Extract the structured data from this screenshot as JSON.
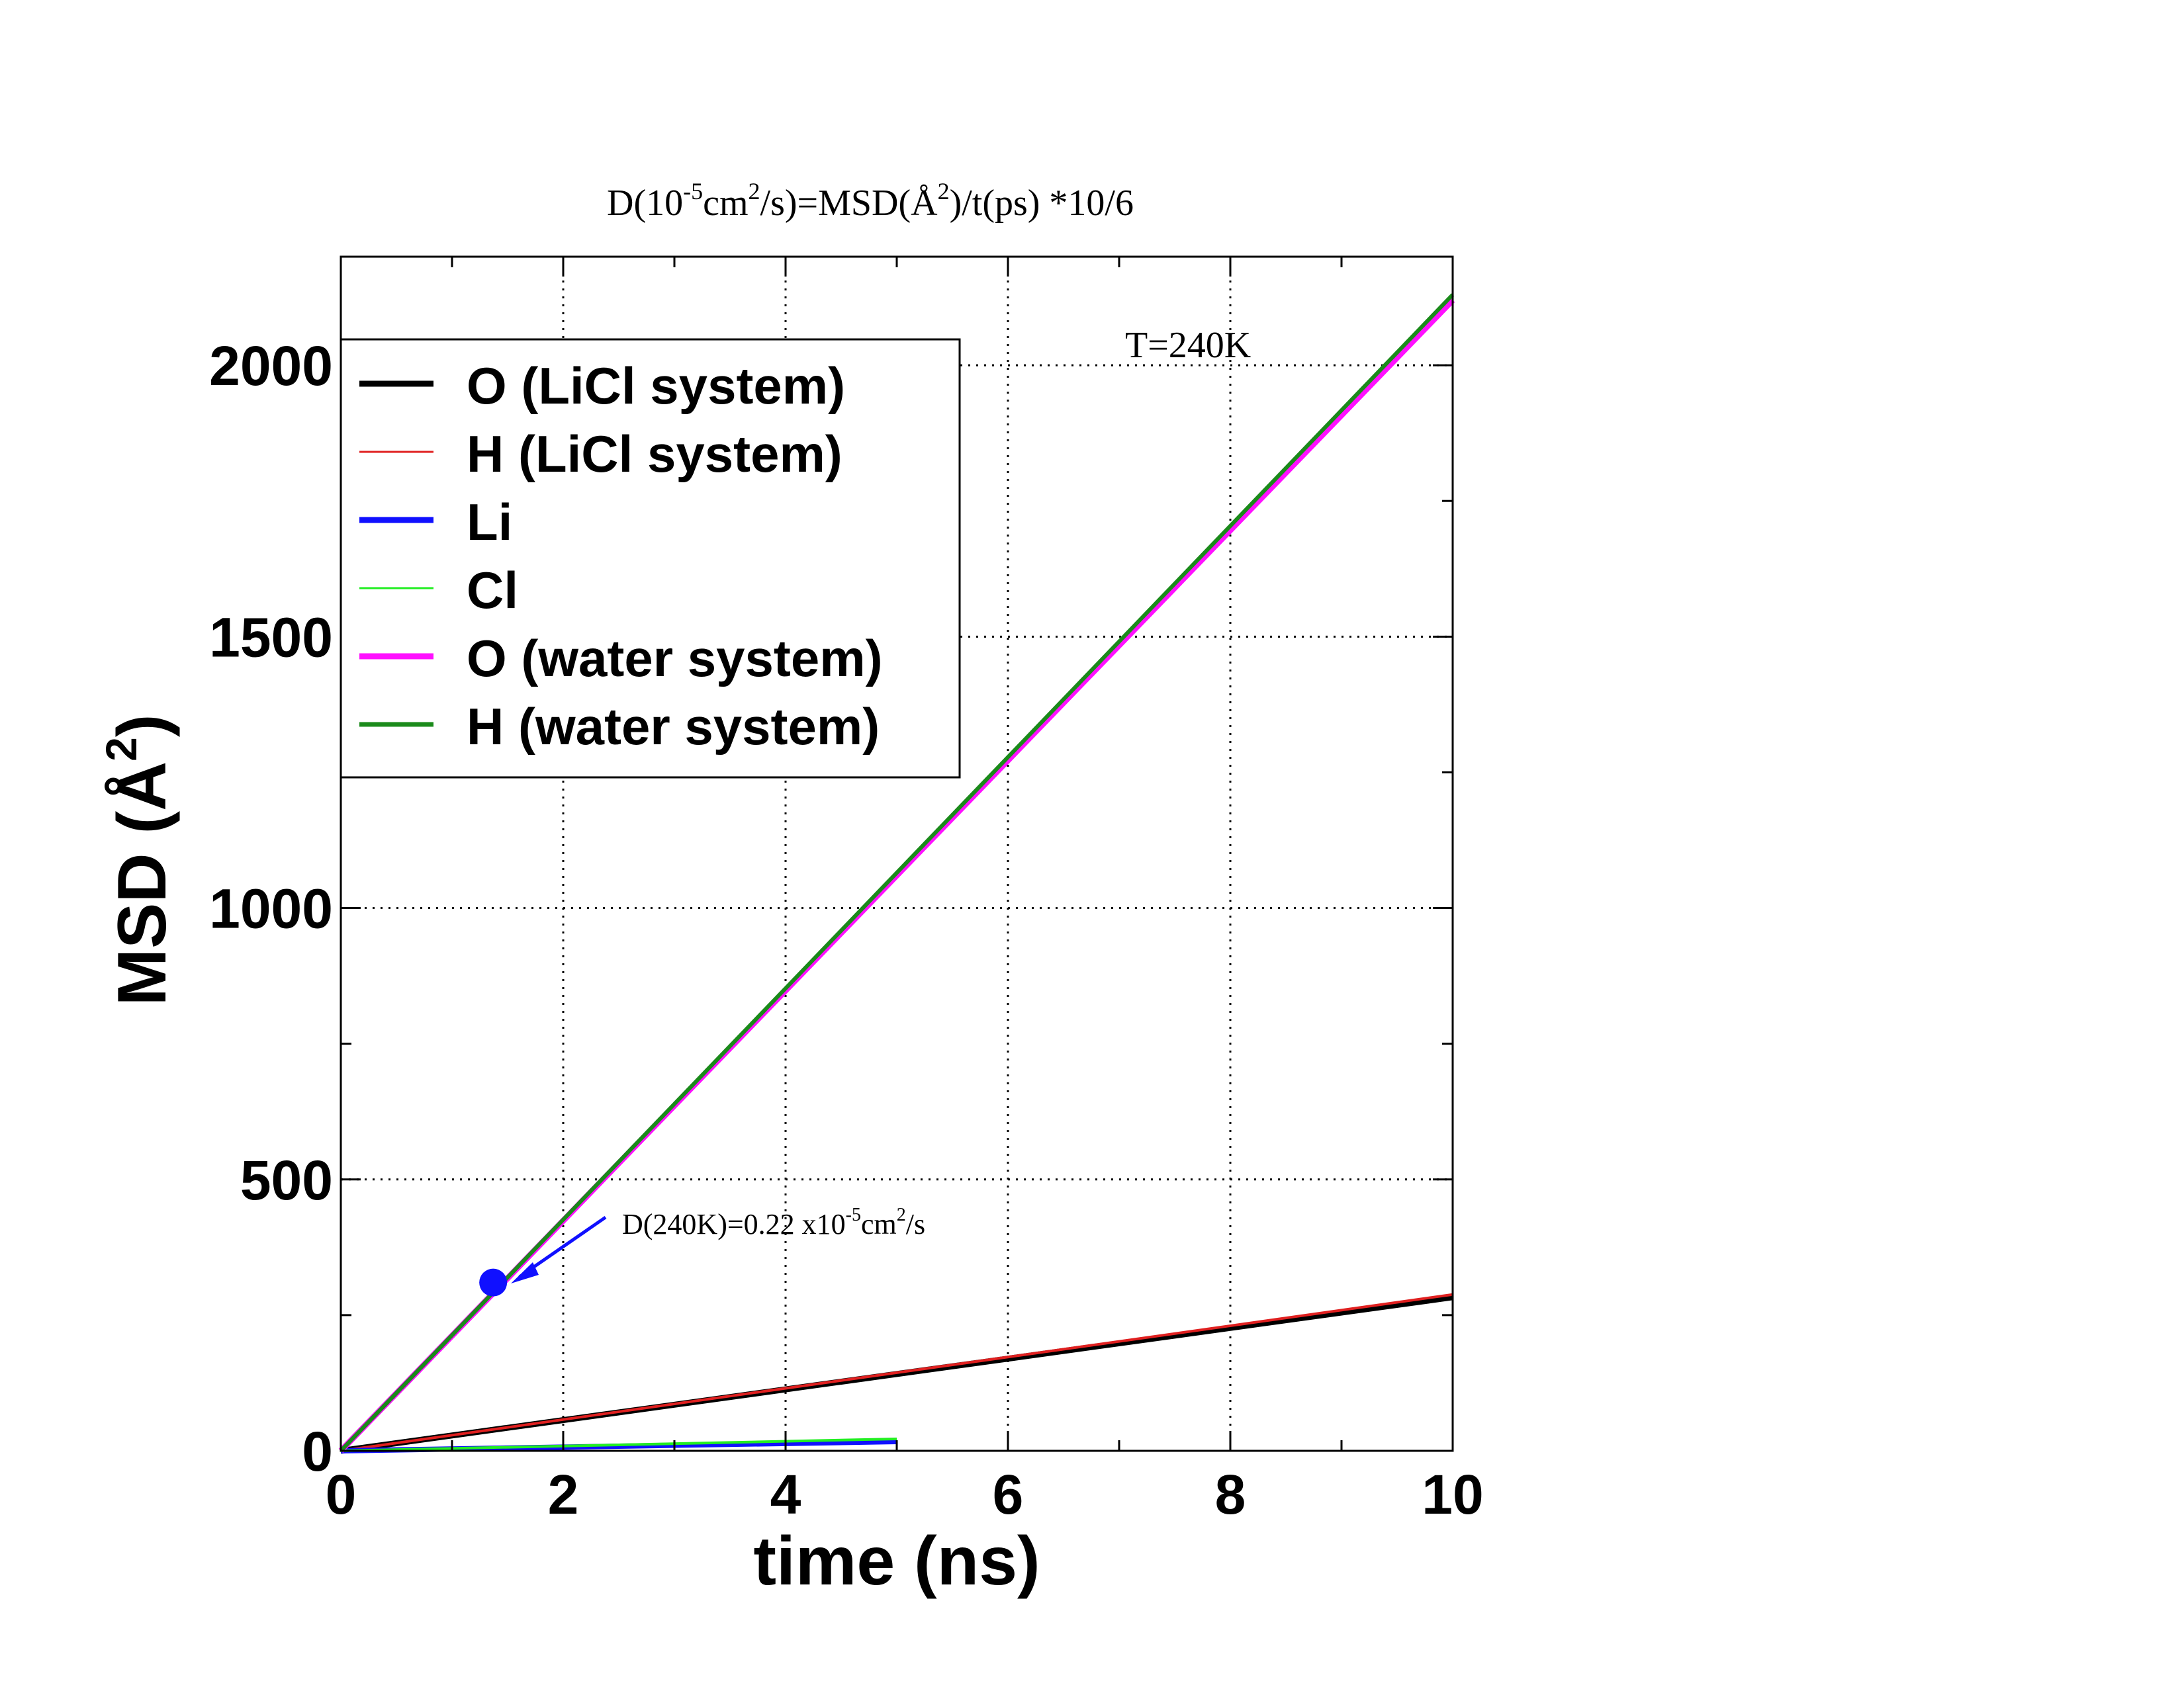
{
  "chart_data": {
    "type": "line",
    "title": {
      "pre": "D(10",
      "sup1": "-5",
      "mid1": "cm",
      "sup2": "2",
      "mid2": "/s)=MSD(Å",
      "sup3": "2",
      "post": ")/t(ps) *10/6"
    },
    "xlabel": "time (ns)",
    "ylabel": {
      "base": "MSD (Å",
      "sup": "2",
      "close": ")"
    },
    "xlim": [
      0,
      10
    ],
    "ylim": [
      0,
      2200
    ],
    "xticks": [
      0,
      2,
      4,
      6,
      8,
      10
    ],
    "xtick_labels": [
      "0",
      "2",
      "4",
      "6",
      "8",
      "10"
    ],
    "yticks": [
      0,
      500,
      1000,
      1500,
      2000
    ],
    "ytick_labels": [
      "0",
      "500",
      "1000",
      "1500",
      "2000"
    ],
    "grid": true,
    "legend_position": "top-left",
    "series": [
      {
        "name": "O (LiCl system)",
        "color": "#000000",
        "legend_weight": "thick",
        "x": [
          0,
          10
        ],
        "y": [
          0,
          283
        ]
      },
      {
        "name": "H (LiCl system)",
        "color": "#e02020",
        "legend_weight": "thin",
        "x": [
          0,
          10
        ],
        "y": [
          0,
          288
        ]
      },
      {
        "name": "Li",
        "color": "#1010ff",
        "legend_weight": "thick",
        "x": [
          0,
          5
        ],
        "y": [
          0,
          17
        ]
      },
      {
        "name": "Cl",
        "color": "#22ee22",
        "legend_weight": "thin",
        "x": [
          0,
          5
        ],
        "y": [
          0,
          22
        ]
      },
      {
        "name": "O (water system)",
        "color": "#ff10ff",
        "legend_weight": "thick",
        "x": [
          0,
          10
        ],
        "y": [
          0,
          2120
        ]
      },
      {
        "name": "H (water system)",
        "color": "#1a8a1a",
        "legend_weight": "medium",
        "x": [
          0,
          10
        ],
        "y": [
          0,
          2130
        ]
      }
    ],
    "annotations": {
      "temperature": "T=240K",
      "marker": {
        "x": 1.37,
        "y": 310,
        "color": "#1010ff"
      },
      "diffusion": {
        "pre": "D(240K)=0.22 x10",
        "sup1": "-5",
        "mid": "cm",
        "sup2": "2",
        "post": "/s"
      }
    }
  }
}
